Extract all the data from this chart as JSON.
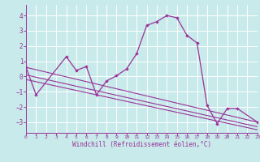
{
  "bg_color": "#c8eaea",
  "line_color": "#993399",
  "grid_color": "#ffffff",
  "xlabel": "Windchill (Refroidissement éolien,°C)",
  "main_x": [
    0,
    1,
    4,
    5,
    6,
    7,
    8,
    9,
    10,
    11,
    12,
    13,
    14,
    15,
    16,
    17,
    18,
    19,
    20,
    21,
    23
  ],
  "main_y": [
    0.6,
    -1.2,
    1.3,
    0.4,
    0.65,
    -1.2,
    -0.3,
    0.05,
    0.5,
    1.5,
    3.35,
    3.6,
    4.0,
    3.85,
    2.7,
    2.2,
    -1.9,
    -3.1,
    -2.1,
    -2.1,
    -3.0
  ],
  "trend1_x": [
    0,
    23
  ],
  "trend1_y": [
    0.6,
    -3.0
  ],
  "trend2_x": [
    0,
    23
  ],
  "trend2_y": [
    0.1,
    -3.3
  ],
  "trend3_x": [
    0,
    23
  ],
  "trend3_y": [
    -0.2,
    -3.5
  ],
  "xlim": [
    0,
    23
  ],
  "ylim": [
    -3.7,
    4.7
  ],
  "yticks": [
    -3,
    -2,
    -1,
    0,
    1,
    2,
    3,
    4
  ],
  "xticks": [
    0,
    1,
    2,
    3,
    4,
    5,
    6,
    7,
    8,
    9,
    10,
    11,
    12,
    13,
    14,
    15,
    16,
    17,
    18,
    19,
    20,
    21,
    22,
    23
  ]
}
